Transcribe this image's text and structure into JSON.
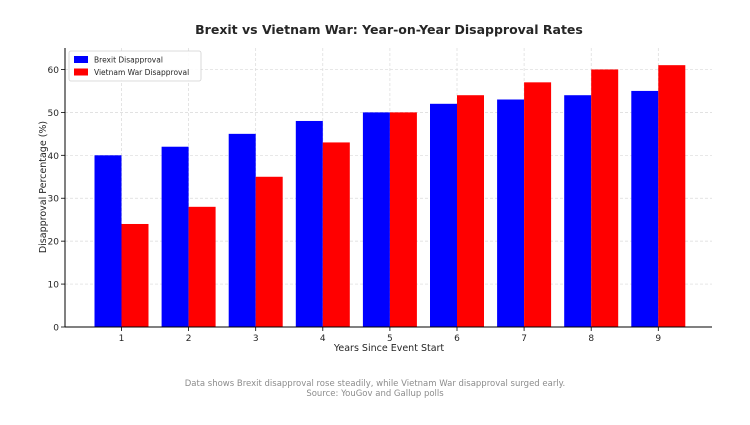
{
  "chart_data": {
    "type": "bar",
    "title": "Brexit vs Vietnam War: Year-on-Year Disapproval Rates",
    "xlabel": "Years Since Event Start",
    "ylabel": "Disapproval Percentage (%)",
    "categories": [
      "1",
      "2",
      "3",
      "4",
      "5",
      "6",
      "7",
      "8",
      "9"
    ],
    "series": [
      {
        "name": "Brexit Disapproval",
        "color": "#0000ff",
        "values": [
          40,
          42,
          45,
          48,
          50,
          52,
          53,
          54,
          55
        ]
      },
      {
        "name": "Vietnam War Disapproval",
        "color": "#ff0000",
        "values": [
          24,
          28,
          35,
          43,
          50,
          54,
          57,
          60,
          61
        ]
      }
    ],
    "ylim": [
      0,
      65
    ],
    "yticks": [
      0,
      10,
      20,
      30,
      40,
      50,
      60
    ],
    "grid": true,
    "legend_position": "top-left"
  },
  "footnote": {
    "line1": "Data shows Brexit disapproval rose steadily, while Vietnam War disapproval surged early.",
    "line2": "Source: YouGov and Gallup polls"
  }
}
